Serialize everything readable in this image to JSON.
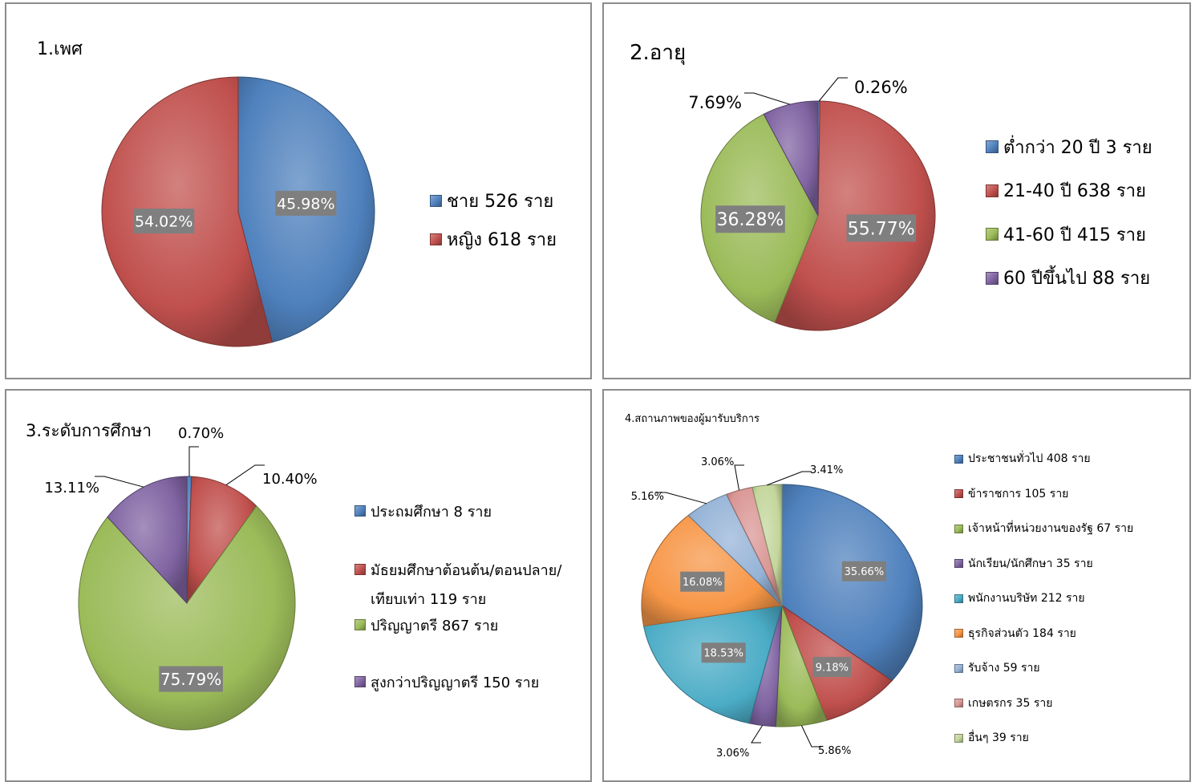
{
  "charts": {
    "gender": {
      "title": "1.เพศ",
      "legend": [
        "ชาย 526 ราย",
        "หญิง 618 ราย"
      ]
    },
    "age": {
      "title": "2.อายุ",
      "legend": [
        "ต่ำกว่า 20 ปี 3 ราย",
        "21-40 ปี 638 ราย",
        "41-60 ปี 415 ราย",
        "60 ปีขึ้นไป 88 ราย"
      ]
    },
    "education": {
      "title": "3.ระดับการศึกษา",
      "legend": [
        "ประถมศึกษา 8 ราย",
        "มัธยมศึกษาต้อนต้น/ตอนปลาย/",
        "เทียบเท่า 119 ราย",
        "ปริญญาตรี 867 ราย",
        "สูงกว่าปริญญาตรี 150 ราย"
      ]
    },
    "status": {
      "title": "4.สถานภาพของผู้มารับบริการ",
      "legend": [
        "ประชาชนทั่วไป 408 ราย",
        "ข้าราชการ 105 ราย",
        "เจ้าหน้าที่หน่วยงานของรัฐ 67 ราย",
        "นักเรียน/นักศึกษา 35 ราย",
        "พนักงานบริษัท 212 ราย",
        "ธุรกิจส่วนตัว 184 ราย",
        "รับจ้าง 59 ราย",
        "เกษตรกร 35 ราย",
        "อื่นๆ 39 ราย"
      ]
    }
  },
  "chart_data": [
    {
      "type": "pie",
      "title": "1.เพศ",
      "categories": [
        "ชาย 526 ราย",
        "หญิง 618 ราย"
      ],
      "values": [
        45.98,
        54.02
      ],
      "labels": [
        "45.98%",
        "54.02%"
      ],
      "colors": [
        "#4f81bd",
        "#c0504d"
      ],
      "legend": "right"
    },
    {
      "type": "pie",
      "title": "2.อายุ",
      "categories": [
        "ต่ำกว่า 20 ปี 3 ราย",
        "21-40 ปี 638 ราย",
        "41-60 ปี 415 ราย",
        "60 ปีขึ้นไป 88 ราย"
      ],
      "values": [
        0.26,
        55.77,
        36.28,
        7.69
      ],
      "labels": [
        "0.26%",
        "55.77%",
        "36.28%",
        "7.69%"
      ],
      "colors": [
        "#4f81bd",
        "#c0504d",
        "#9bbb59",
        "#8064a2"
      ],
      "legend": "right"
    },
    {
      "type": "pie",
      "title": "3.ระดับการศึกษา",
      "categories": [
        "ประถมศึกษา 8 ราย",
        "มัธยมศึกษาต้อนต้น/ตอนปลาย/เทียบเท่า 119 ราย",
        "ปริญญาตรี 867 ราย",
        "สูงกว่าปริญญาตรี 150 ราย"
      ],
      "values": [
        0.7,
        10.4,
        75.79,
        13.11
      ],
      "labels": [
        "0.70%",
        "10.40%",
        "75.79%",
        "13.11%"
      ],
      "colors": [
        "#4f81bd",
        "#c0504d",
        "#9bbb59",
        "#8064a2"
      ],
      "legend": "right"
    },
    {
      "type": "pie",
      "title": "4.สถานภาพของผู้มารับบริการ",
      "categories": [
        "ประชาชนทั่วไป 408 ราย",
        "ข้าราชการ 105 ราย",
        "เจ้าหน้าที่หน่วยงานของรัฐ 67 ราย",
        "นักเรียน/นักศึกษา 35 ราย",
        "พนักงานบริษัท 212 ราย",
        "ธุรกิจส่วนตัว 184 ราย",
        "รับจ้าง 59 ราย",
        "เกษตรกร 35 ราย",
        "อื่นๆ 39 ราย"
      ],
      "values": [
        35.66,
        9.18,
        5.86,
        3.06,
        18.53,
        16.08,
        5.16,
        3.06,
        3.41
      ],
      "labels": [
        "35.66%",
        "9.18%",
        "5.86%",
        "3.06%",
        "18.53%",
        "16.08%",
        "5.16%",
        "3.06%",
        "3.41%"
      ],
      "colors": [
        "#4f81bd",
        "#c0504d",
        "#9bbb59",
        "#8064a2",
        "#4bacc6",
        "#f79646",
        "#95b3d7",
        "#d99694",
        "#c3d69b"
      ],
      "legend": "right"
    }
  ]
}
